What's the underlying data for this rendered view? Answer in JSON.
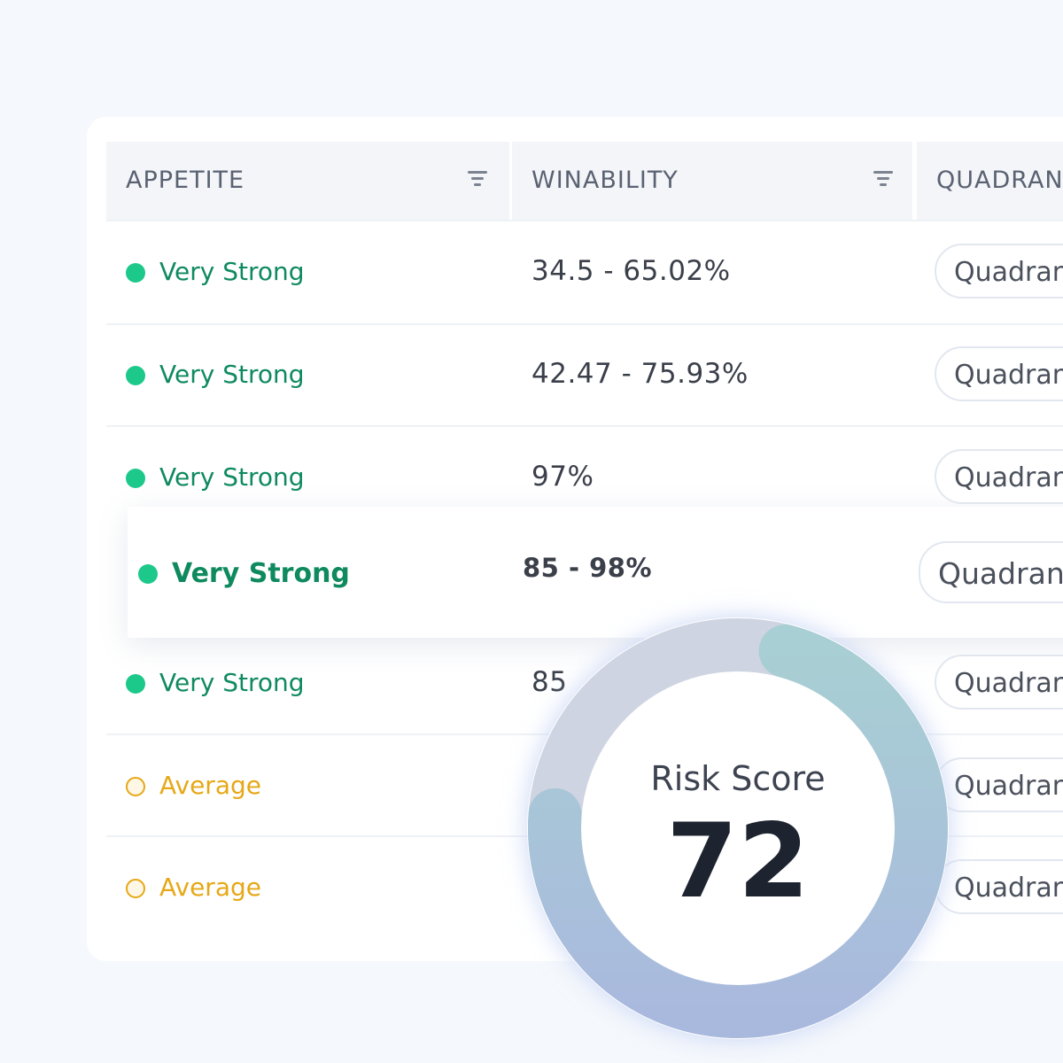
{
  "table": {
    "columns": [
      "APPETITE",
      "WINABILITY",
      "QUADRANT"
    ],
    "highlighted_row": 3,
    "rows": [
      {
        "appetite": "Very Strong",
        "color": "#1dc98a",
        "winability": "34.5 - 65.02%",
        "quadrant": "Quadrant"
      },
      {
        "appetite": "Very Strong",
        "color": "#1dc98a",
        "winability": "42.47 - 75.93%",
        "quadrant": "Quadrant"
      },
      {
        "appetite": "Very Strong",
        "color": "#1dc98a",
        "winability": "97%",
        "quadrant": "Quadrant"
      },
      {
        "appetite": "Very Strong",
        "color": "#1dc98a",
        "winability": "85 - 98%",
        "quadrant": "Quadrant"
      },
      {
        "appetite": "Very Strong",
        "color": "#1dc98a",
        "winability": "85",
        "quadrant": "Quadrant"
      },
      {
        "appetite": "Average",
        "color": "#e6a817",
        "quadrant": "Quadrant"
      },
      {
        "appetite": "Average",
        "color": "#e6a817",
        "quadrant": "Quadrant"
      }
    ]
  },
  "gauge": {
    "label": "Risk Score",
    "value": 72
  }
}
